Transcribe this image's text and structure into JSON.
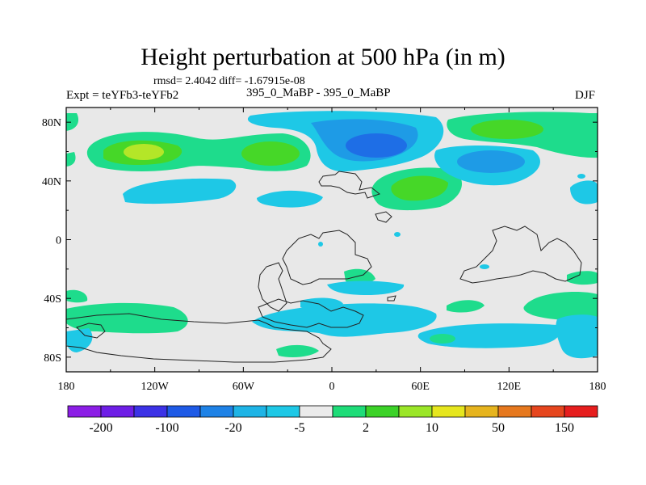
{
  "title": "Height perturbation at 500 hPa (in m)",
  "stats_line": "rmsd= 2.4042 diff= -1.67915e-08",
  "left_label": "Expt = teYFb3-teYFb2",
  "center_label": "395_0_MaBP - 395_0_MaBP",
  "right_label": "DJF",
  "axes": {
    "lon_ticks": [
      "180",
      "120W",
      "60W",
      "0",
      "60E",
      "120E",
      "180"
    ],
    "lon_values": [
      -180,
      -120,
      -60,
      0,
      60,
      120,
      180
    ],
    "lat_ticks": [
      "80N",
      "40N",
      "0",
      "40S",
      "80S"
    ],
    "lat_values": [
      80,
      40,
      0,
      -40,
      -80
    ],
    "lat_range": [
      -90,
      90
    ],
    "lon_range": [
      -180,
      180
    ]
  },
  "colorbar": {
    "colors": [
      "#8c1ee6",
      "#6e1ee6",
      "#3c32e6",
      "#1e5ae6",
      "#1e82e6",
      "#1eb4e6",
      "#1ec8e6",
      "#ebebeb",
      "#1edc78",
      "#3cd228",
      "#9be628",
      "#e6e61e",
      "#e6b41e",
      "#e6781e",
      "#e6461e",
      "#e61e1e"
    ],
    "labels": [
      "-200",
      "-100",
      "-20",
      "-5",
      "2",
      "10",
      "50",
      "150"
    ]
  },
  "colors": {
    "background": "#e8e8e8",
    "light_blue": "#1ec8e6",
    "mid_blue": "#1e9be6",
    "blue": "#1e6ee6",
    "teal": "#1edc8c",
    "green": "#46d728",
    "yellow_green": "#b4e628"
  }
}
